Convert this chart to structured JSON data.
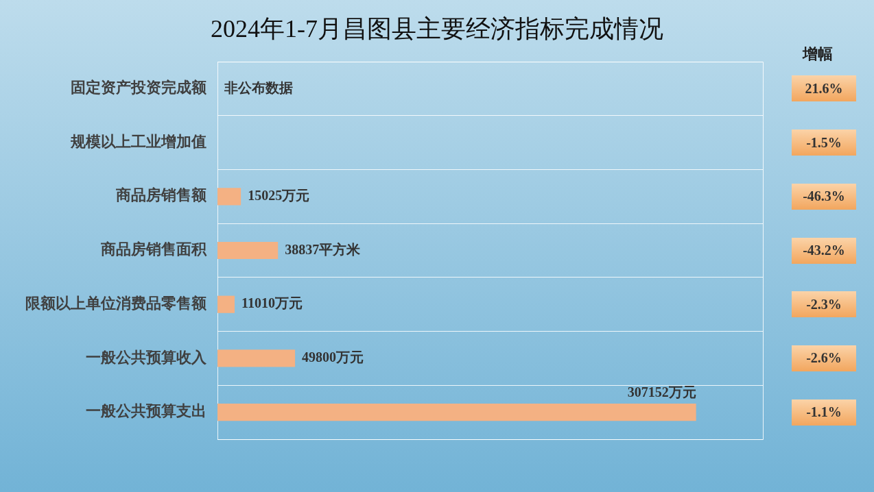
{
  "chart_data": [
    {
      "type": "bar",
      "orientation": "horizontal",
      "title": "2024年1-7月昌图县主要经济指标完成情况",
      "categories": [
        "固定资产投资完成额",
        "规模以上工业增加值",
        "商品房销售额",
        "商品房销售面积",
        "限额以上单位消费品零售额",
        "一般公共预算收入",
        "一般公共预算支出"
      ],
      "values": [
        null,
        null,
        15025,
        38837,
        11010,
        49800,
        307152
      ],
      "value_labels": [
        "非公布数据",
        null,
        "15025万元",
        "38837平方米",
        "11010万元",
        "49800万元",
        "307152万元"
      ],
      "color": "#f4b183",
      "grid": "y",
      "legend": false
    },
    {
      "type": "other",
      "title": "增幅",
      "annotations": [
        "21.6%",
        "-1.5%",
        "-46.3%",
        "-43.2%",
        "-2.3%",
        "-2.6%",
        "-1.1%"
      ]
    }
  ]
}
